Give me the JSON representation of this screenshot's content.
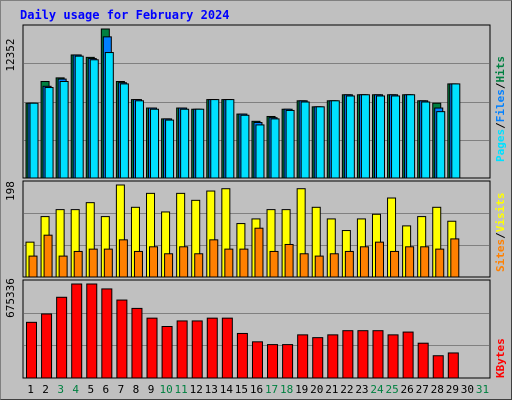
{
  "title": "Daily usage for February 2024",
  "colors": {
    "hits": "#008040",
    "files": "#0080ff",
    "pages": "#00e0ff",
    "visits": "#ffff00",
    "sites": "#ff8000",
    "kbytes": "#ff0000",
    "weekend_day_label": "#008040",
    "weekday_day_label": "#000000"
  },
  "legend": {
    "top": [
      "Pages",
      "/",
      "Files",
      "/",
      "Hits"
    ],
    "middle": [
      "Sites",
      "/",
      "Visits"
    ],
    "bottom": [
      "KBytes"
    ]
  },
  "chart_data": [
    {
      "type": "bar",
      "panel": "hits-files-pages",
      "ymax_label": "12352",
      "ylim": [
        0,
        12352
      ],
      "categories": [
        "1",
        "2",
        "3",
        "4",
        "5",
        "6",
        "7",
        "8",
        "9",
        "10",
        "11",
        "12",
        "13",
        "14",
        "15",
        "16",
        "17",
        "18",
        "19",
        "20",
        "21",
        "22",
        "23",
        "24",
        "25",
        "26",
        "27",
        "28",
        "29",
        "30",
        "31"
      ],
      "series": [
        {
          "name": "Hits",
          "values": [
            6200,
            8000,
            8300,
            10200,
            10000,
            12352,
            8000,
            6500,
            5800,
            4900,
            5800,
            5700,
            6500,
            6500,
            5300,
            4700,
            5100,
            5700,
            6400,
            5900,
            6400,
            6900,
            6900,
            6900,
            6900,
            6900,
            6400,
            6200,
            7800,
            0,
            0
          ]
        },
        {
          "name": "Files",
          "values": [
            6200,
            7600,
            8200,
            10200,
            9900,
            11700,
            7900,
            6500,
            5800,
            4900,
            5800,
            5700,
            6500,
            6500,
            5300,
            4600,
            5000,
            5700,
            6400,
            5900,
            6400,
            6900,
            6900,
            6900,
            6900,
            6900,
            6400,
            5800,
            7800,
            0,
            0
          ]
        },
        {
          "name": "Pages",
          "values": [
            6200,
            7500,
            8000,
            10100,
            9800,
            10400,
            7800,
            6400,
            5700,
            4800,
            5700,
            5700,
            6500,
            6500,
            5200,
            4400,
            4900,
            5600,
            6300,
            5900,
            6400,
            6800,
            6900,
            6800,
            6800,
            6900,
            6300,
            5500,
            7800,
            0,
            0
          ]
        }
      ]
    },
    {
      "type": "bar",
      "panel": "visits-sites",
      "ymax_label": "198",
      "ylim": [
        0,
        198
      ],
      "categories": [
        "1",
        "2",
        "3",
        "4",
        "5",
        "6",
        "7",
        "8",
        "9",
        "10",
        "11",
        "12",
        "13",
        "14",
        "15",
        "16",
        "17",
        "18",
        "19",
        "20",
        "21",
        "22",
        "23",
        "24",
        "25",
        "26",
        "27",
        "28",
        "29",
        "30",
        "31"
      ],
      "series": [
        {
          "name": "Visits",
          "values": [
            75,
            130,
            145,
            145,
            160,
            130,
            198,
            150,
            180,
            140,
            180,
            165,
            185,
            190,
            115,
            125,
            145,
            145,
            190,
            150,
            125,
            100,
            125,
            135,
            170,
            110,
            130,
            150,
            120,
            0,
            0
          ]
        },
        {
          "name": "Sites",
          "values": [
            45,
            90,
            45,
            55,
            60,
            60,
            80,
            55,
            65,
            50,
            65,
            50,
            80,
            60,
            60,
            105,
            55,
            70,
            50,
            45,
            50,
            55,
            65,
            75,
            55,
            65,
            65,
            60,
            82,
            0,
            0
          ]
        }
      ]
    },
    {
      "type": "bar",
      "panel": "kbytes",
      "ymax_label": "675336",
      "ylim": [
        0,
        675336
      ],
      "categories": [
        "1",
        "2",
        "3",
        "4",
        "5",
        "6",
        "7",
        "8",
        "9",
        "10",
        "11",
        "12",
        "13",
        "14",
        "15",
        "16",
        "17",
        "18",
        "19",
        "20",
        "21",
        "22",
        "23",
        "24",
        "25",
        "26",
        "27",
        "28",
        "29",
        "30",
        "31"
      ],
      "series": [
        {
          "name": "KBytes",
          "values": [
            400000,
            460000,
            580000,
            675336,
            675336,
            640000,
            560000,
            500000,
            430000,
            370000,
            410000,
            410000,
            430000,
            430000,
            320000,
            260000,
            240000,
            240000,
            310000,
            290000,
            310000,
            340000,
            340000,
            340000,
            310000,
            330000,
            250000,
            160000,
            180000,
            0,
            0
          ]
        }
      ]
    }
  ]
}
